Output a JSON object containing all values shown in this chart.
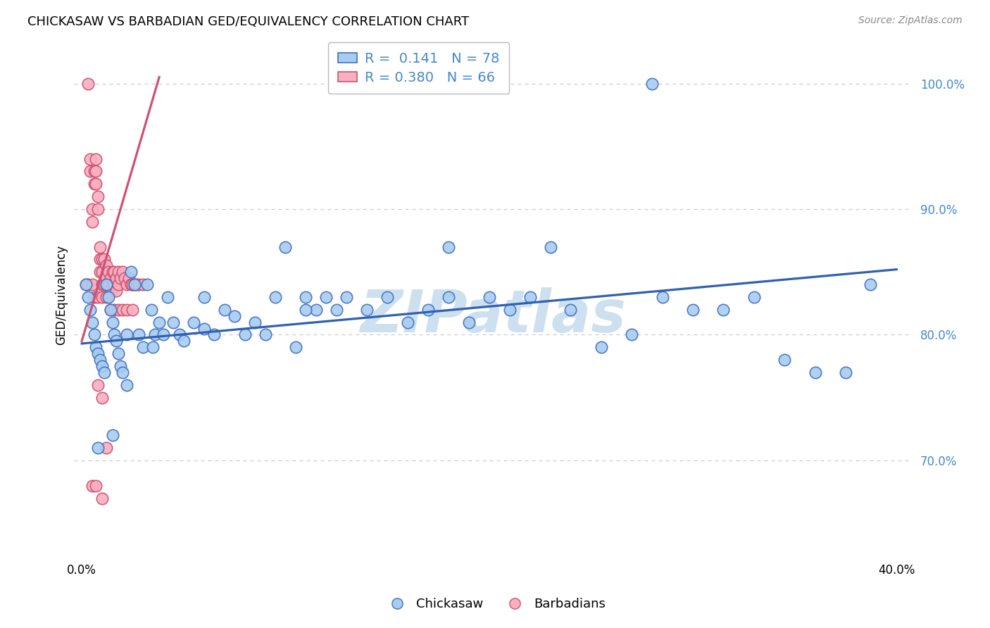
{
  "title": "CHICKASAW VS BARBADIAN GED/EQUIVALENCY CORRELATION CHART",
  "source": "Source: ZipAtlas.com",
  "ylabel": "GED/Equivalency",
  "ytick_labels": [
    "70.0%",
    "80.0%",
    "90.0%",
    "100.0%"
  ],
  "ytick_vals": [
    0.7,
    0.8,
    0.9,
    1.0
  ],
  "xlim": [
    -0.004,
    0.408
  ],
  "ylim": [
    0.625,
    1.038
  ],
  "legend_blue_r": "0.141",
  "legend_blue_n": "78",
  "legend_pink_r": "0.380",
  "legend_pink_n": "66",
  "blue_face": "#A8CCF0",
  "blue_edge": "#4070C0",
  "pink_face": "#F8B0C0",
  "pink_edge": "#D05070",
  "blue_line": "#3060B0",
  "pink_line": "#D05070",
  "tick_color": "#4488CC",
  "watermark_color": "#cce0f0",
  "watermark_text": "ZIPatlas",
  "grid_color": "#cccccc",
  "bg_color": "#ffffff",
  "blue_line_x0": 0.0,
  "blue_line_x1": 0.4,
  "blue_line_y0": 0.793,
  "blue_line_y1": 0.852,
  "pink_line_x0": 0.0,
  "pink_line_x1": 0.038,
  "pink_line_y0": 0.795,
  "pink_line_y1": 1.005,
  "chick_x": [
    0.002,
    0.003,
    0.004,
    0.005,
    0.006,
    0.007,
    0.008,
    0.009,
    0.01,
    0.011,
    0.012,
    0.013,
    0.014,
    0.015,
    0.016,
    0.017,
    0.018,
    0.019,
    0.02,
    0.022,
    0.024,
    0.026,
    0.028,
    0.03,
    0.032,
    0.034,
    0.036,
    0.038,
    0.04,
    0.042,
    0.045,
    0.048,
    0.05,
    0.055,
    0.06,
    0.065,
    0.07,
    0.075,
    0.08,
    0.085,
    0.09,
    0.095,
    0.1,
    0.105,
    0.11,
    0.115,
    0.12,
    0.125,
    0.13,
    0.14,
    0.15,
    0.16,
    0.17,
    0.18,
    0.19,
    0.2,
    0.21,
    0.22,
    0.23,
    0.24,
    0.255,
    0.27,
    0.285,
    0.3,
    0.315,
    0.33,
    0.345,
    0.36,
    0.375,
    0.387,
    0.008,
    0.015,
    0.022,
    0.035,
    0.06,
    0.11,
    0.18,
    0.28
  ],
  "chick_y": [
    0.84,
    0.83,
    0.82,
    0.81,
    0.8,
    0.79,
    0.785,
    0.78,
    0.775,
    0.77,
    0.84,
    0.83,
    0.82,
    0.81,
    0.8,
    0.795,
    0.785,
    0.775,
    0.77,
    0.8,
    0.85,
    0.84,
    0.8,
    0.79,
    0.84,
    0.82,
    0.8,
    0.81,
    0.8,
    0.83,
    0.81,
    0.8,
    0.795,
    0.81,
    0.805,
    0.8,
    0.82,
    0.815,
    0.8,
    0.81,
    0.8,
    0.83,
    0.87,
    0.79,
    0.83,
    0.82,
    0.83,
    0.82,
    0.83,
    0.82,
    0.83,
    0.81,
    0.82,
    0.83,
    0.81,
    0.83,
    0.82,
    0.83,
    0.87,
    0.82,
    0.79,
    0.8,
    0.83,
    0.82,
    0.82,
    0.83,
    0.78,
    0.77,
    0.77,
    0.84,
    0.71,
    0.72,
    0.76,
    0.79,
    0.83,
    0.82,
    0.87,
    1.0
  ],
  "barb_x": [
    0.002,
    0.003,
    0.003,
    0.004,
    0.004,
    0.005,
    0.005,
    0.005,
    0.006,
    0.006,
    0.007,
    0.007,
    0.007,
    0.008,
    0.008,
    0.009,
    0.009,
    0.009,
    0.01,
    0.01,
    0.01,
    0.01,
    0.011,
    0.011,
    0.012,
    0.012,
    0.012,
    0.013,
    0.013,
    0.014,
    0.014,
    0.015,
    0.015,
    0.016,
    0.016,
    0.017,
    0.017,
    0.018,
    0.018,
    0.019,
    0.02,
    0.021,
    0.022,
    0.023,
    0.024,
    0.025,
    0.026,
    0.027,
    0.028,
    0.03,
    0.006,
    0.008,
    0.01,
    0.012,
    0.014,
    0.016,
    0.018,
    0.02,
    0.022,
    0.025,
    0.008,
    0.01,
    0.012,
    0.005,
    0.007,
    0.01
  ],
  "barb_y": [
    0.84,
    0.84,
    1.0,
    0.94,
    0.93,
    0.9,
    0.89,
    0.84,
    0.93,
    0.92,
    0.94,
    0.93,
    0.92,
    0.91,
    0.9,
    0.87,
    0.86,
    0.85,
    0.86,
    0.85,
    0.84,
    0.84,
    0.86,
    0.84,
    0.855,
    0.845,
    0.84,
    0.85,
    0.84,
    0.845,
    0.835,
    0.85,
    0.84,
    0.85,
    0.84,
    0.845,
    0.835,
    0.85,
    0.84,
    0.845,
    0.85,
    0.845,
    0.84,
    0.845,
    0.84,
    0.84,
    0.84,
    0.84,
    0.84,
    0.84,
    0.83,
    0.83,
    0.83,
    0.83,
    0.82,
    0.82,
    0.82,
    0.82,
    0.82,
    0.82,
    0.76,
    0.75,
    0.71,
    0.68,
    0.68,
    0.67
  ]
}
